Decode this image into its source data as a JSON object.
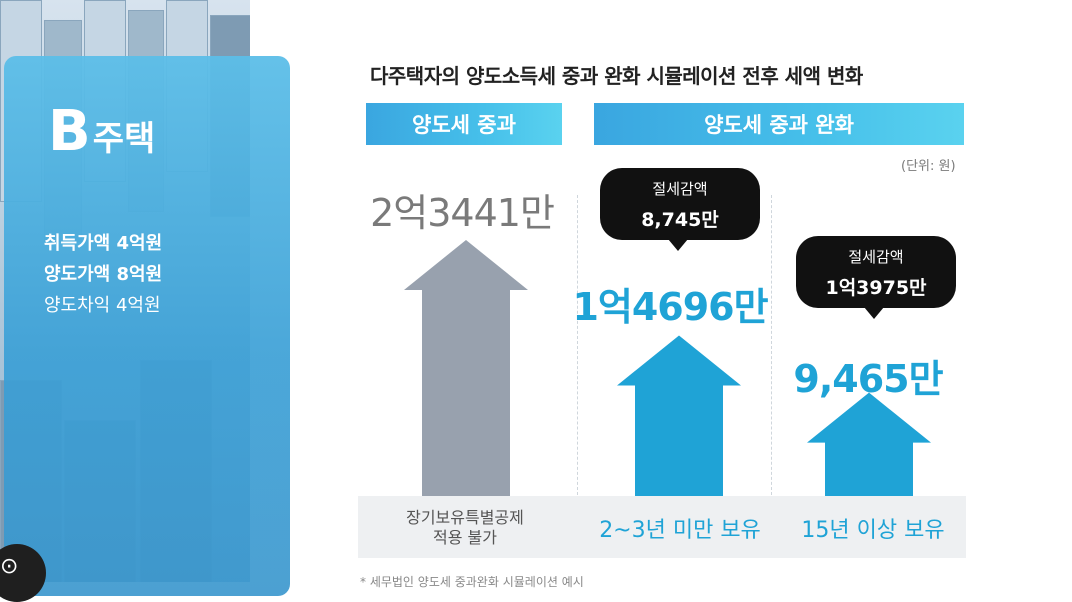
{
  "card": {
    "letter": "B",
    "word": "주택",
    "lines": [
      "취득가액 4억원",
      "양도가액 8억원",
      "양도차익 4억원"
    ]
  },
  "title": "다주택자의 양도소득세 중과 완화 시뮬레이션 전후 세액 변화",
  "headers": [
    "양도세 중과",
    "양도세 중과 완화"
  ],
  "unit": "(단위: 원)",
  "colors": {
    "gray": "#98a1ae",
    "blue": "#1fa3d6",
    "header": "#3aa6e0"
  },
  "chart_data": {
    "type": "bar",
    "categories": [
      "장기보유특별공제 적용 불가",
      "2~3년 미만 보유",
      "15년 이상 보유"
    ],
    "values": [
      234410000,
      146960000,
      94650000
    ],
    "value_labels": [
      "2억3441만",
      "1억4696만",
      "9,465만"
    ],
    "savings": [
      {
        "label": "절세감액",
        "amount": "8,745만"
      },
      {
        "label": "절세감액",
        "amount": "1억3975만"
      }
    ]
  },
  "conditions": {
    "c1_line1": "장기보유특별공제",
    "c1_line2": "적용 불가",
    "c2": "2~3년 미만 보유",
    "c3": "15년 이상 보유"
  },
  "footnote": "* 세무법인 양도세 중과완화 시뮬레이션 예시"
}
